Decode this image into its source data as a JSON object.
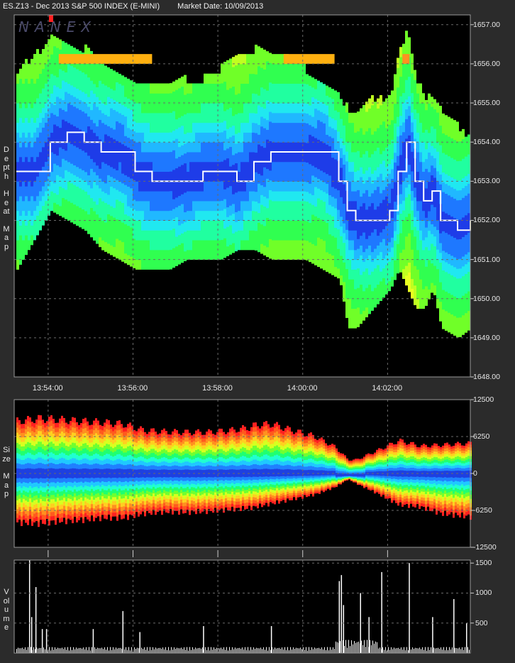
{
  "header": {
    "instrument": "ES.Z13 - Dec 2013 S&P 500 INDEX (E-MINI)",
    "market_date": "Market Date: 10/09/2013"
  },
  "logo_text": "NANEX",
  "panels": {
    "depth": {
      "label": "Depth Heat Map",
      "words": [
        "Depth",
        "Heat",
        "Map"
      ]
    },
    "size": {
      "label": "Size Map",
      "words": [
        "Size",
        "Map"
      ]
    },
    "volume": {
      "label": "Volume",
      "words": [
        "Volume"
      ]
    }
  },
  "chart_data": [
    {
      "type": "heatmap",
      "name": "depth-heat-map",
      "xlabel": "",
      "ylabel": "",
      "x_ticks": [
        "13:54:00",
        "13:56:00",
        "13:58:00",
        "14:00:00",
        "14:02:00"
      ],
      "y_ticks": [
        1657.0,
        1656.0,
        1655.0,
        1654.0,
        1653.0,
        1652.0,
        1651.0,
        1650.0,
        1649.0,
        1648.0
      ],
      "y_tick_labels": [
        "1657.00",
        "1656.00",
        "1655.00",
        "1654.00",
        "1653.00",
        "1652.00",
        "1651.00",
        "1650.00",
        "1649.00",
        "1648.00"
      ],
      "ylim": [
        1648.0,
        1657.25
      ],
      "xlim_minutes": [
        0,
        10.7
      ],
      "grid": true,
      "price_trace": {
        "t_min": [
          0.0,
          0.4,
          0.8,
          1.2,
          1.6,
          2.0,
          2.4,
          2.8,
          3.2,
          3.6,
          4.0,
          4.4,
          4.8,
          5.2,
          5.6,
          6.0,
          6.4,
          6.8,
          7.2,
          7.6,
          7.8,
          8.0,
          8.4,
          8.8,
          9.0,
          9.2,
          9.4,
          9.6,
          9.8,
          10.0,
          10.4,
          10.7
        ],
        "price": [
          1653.25,
          1653.25,
          1654.0,
          1654.25,
          1654.0,
          1653.75,
          1653.75,
          1653.25,
          1653.0,
          1653.0,
          1653.0,
          1653.25,
          1653.25,
          1653.0,
          1653.5,
          1653.75,
          1653.75,
          1653.75,
          1653.75,
          1653.0,
          1652.25,
          1652.0,
          1652.0,
          1652.25,
          1653.25,
          1654.0,
          1653.0,
          1652.5,
          1652.75,
          1652.0,
          1651.75,
          1652.0
        ]
      },
      "book_top": {
        "t_min": [
          0.0,
          0.6,
          0.8,
          1.2,
          1.6,
          2.0,
          2.4,
          2.8,
          3.2,
          3.6,
          4.0,
          4.4,
          4.8,
          5.2,
          5.6,
          6.0,
          6.4,
          6.8,
          7.2,
          7.6,
          7.8,
          8.0,
          8.4,
          8.8,
          9.0,
          9.2,
          9.4,
          9.6,
          9.8,
          10.0,
          10.4,
          10.7
        ],
        "price": [
          1655.75,
          1656.25,
          1656.5,
          1656.5,
          1656.25,
          1656.0,
          1655.75,
          1655.5,
          1655.5,
          1655.5,
          1655.5,
          1655.5,
          1655.75,
          1656.25,
          1656.25,
          1656.25,
          1656.0,
          1655.75,
          1655.5,
          1655.0,
          1654.75,
          1654.75,
          1655.0,
          1655.0,
          1656.25,
          1656.75,
          1655.5,
          1655.0,
          1655.0,
          1654.75,
          1654.25,
          1654.0
        ]
      },
      "book_bottom": {
        "t_min": [
          0.0,
          0.4,
          0.8,
          1.2,
          1.6,
          2.0,
          2.4,
          2.8,
          3.2,
          3.6,
          4.0,
          4.4,
          4.8,
          5.2,
          5.6,
          6.0,
          6.4,
          6.8,
          7.2,
          7.6,
          7.8,
          8.0,
          8.4,
          8.8,
          9.0,
          9.2,
          9.4,
          9.6,
          9.8,
          10.0,
          10.4,
          10.7
        ],
        "price": [
          1650.75,
          1651.5,
          1652.25,
          1652.0,
          1651.75,
          1651.25,
          1651.0,
          1650.75,
          1650.75,
          1650.75,
          1651.0,
          1651.0,
          1651.0,
          1651.25,
          1651.25,
          1651.0,
          1651.0,
          1651.0,
          1650.75,
          1650.5,
          1649.25,
          1649.25,
          1649.75,
          1650.25,
          1650.75,
          1650.25,
          1649.75,
          1649.75,
          1650.25,
          1649.25,
          1649.0,
          1649.25
        ]
      }
    },
    {
      "type": "area",
      "name": "size-map",
      "xlabel": "",
      "ylabel": "",
      "y_ticks": [
        12500,
        6250,
        0,
        -6250,
        -12500
      ],
      "y_tick_labels": [
        "12500",
        "6250",
        "0",
        "-6250",
        "-12500"
      ],
      "ylim": [
        -12500,
        12500
      ],
      "grid": true,
      "upper_envelope": {
        "t_min": [
          0.0,
          0.5,
          1.0,
          1.5,
          2.0,
          2.5,
          3.0,
          3.5,
          4.0,
          4.5,
          5.0,
          5.5,
          5.6,
          6.0,
          6.5,
          7.0,
          7.5,
          7.8,
          8.0,
          8.5,
          9.0,
          9.5,
          10.0,
          10.7
        ],
        "value": [
          9500,
          10000,
          9800,
          9500,
          9300,
          9000,
          7800,
          7600,
          7500,
          7500,
          7800,
          8400,
          8800,
          9000,
          7800,
          6800,
          4800,
          2500,
          2500,
          4200,
          6000,
          5000,
          5200,
          5500
        ]
      },
      "lower_envelope": {
        "t_min": [
          0.0,
          0.5,
          1.0,
          1.5,
          2.0,
          2.5,
          3.0,
          3.5,
          4.0,
          4.5,
          5.0,
          5.5,
          6.0,
          6.5,
          7.0,
          7.5,
          7.8,
          8.0,
          8.5,
          9.0,
          9.5,
          10.0,
          10.7
        ],
        "value": [
          -8800,
          -9000,
          -8600,
          -8400,
          -8000,
          -8000,
          -7200,
          -6900,
          -7000,
          -6800,
          -6500,
          -6200,
          -5400,
          -4600,
          -3800,
          -2400,
          -1000,
          -1800,
          -3600,
          -5600,
          -6000,
          -7200,
          -7800
        ]
      },
      "palette": [
        "#ff2020",
        "#ff5a1e",
        "#ff9020",
        "#ffd020",
        "#d8ff20",
        "#70ff30",
        "#20ff70",
        "#20ffd0",
        "#20c8ff",
        "#2080ff",
        "#1e40e0"
      ]
    },
    {
      "type": "bar",
      "name": "volume",
      "xlabel": "",
      "ylabel": "",
      "y_ticks": [
        1500,
        1000,
        500
      ],
      "y_tick_labels": [
        "1500",
        "1000",
        "500"
      ],
      "ylim": [
        0,
        1550
      ],
      "grid": true,
      "spikes": {
        "t_min": [
          0.3,
          0.35,
          0.45,
          0.6,
          0.7,
          1.8,
          2.5,
          2.9,
          4.4,
          6.0,
          7.6,
          7.65,
          7.7,
          8.1,
          8.3,
          8.6,
          9.25,
          9.8,
          10.3,
          10.6
        ],
        "value": [
          1550,
          600,
          1100,
          400,
          400,
          400,
          700,
          350,
          450,
          450,
          1200,
          1300,
          800,
          1000,
          600,
          1350,
          1500,
          600,
          900,
          500
        ]
      },
      "baseline": 100
    }
  ]
}
